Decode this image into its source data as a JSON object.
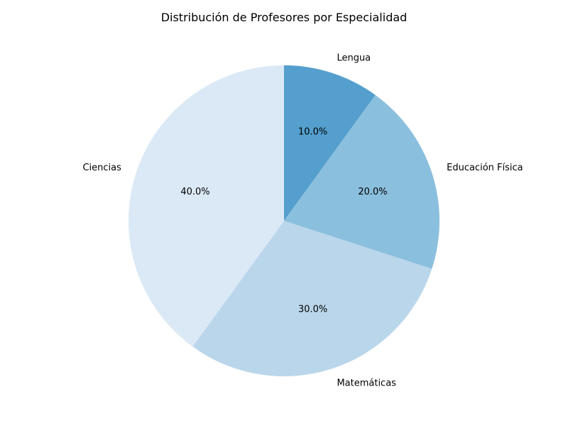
{
  "chart_data": {
    "type": "pie",
    "title": "Distribución de Profesores por Especialidad",
    "categories": [
      "Lengua",
      "Educación Física",
      "Matemáticas",
      "Ciencias"
    ],
    "values": [
      10,
      20,
      30,
      40
    ],
    "percent_labels": [
      "10.0%",
      "20.0%",
      "30.0%",
      "40.0%"
    ],
    "colors": [
      "#549fcd",
      "#8abfdd",
      "#bad6eb",
      "#dbe9f6"
    ],
    "start_angle": "top",
    "direction": "clockwise",
    "legend": "none"
  }
}
